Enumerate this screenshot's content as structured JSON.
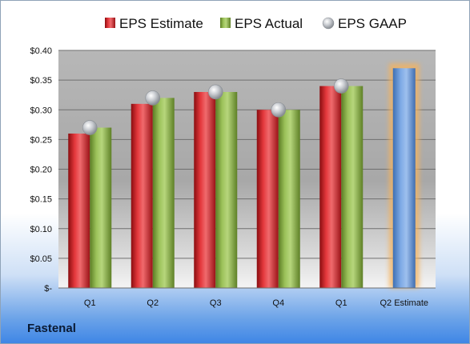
{
  "company": "Fastenal",
  "chart_data": {
    "type": "bar",
    "categories": [
      "Q1",
      "Q2",
      "Q3",
      "Q4",
      "Q1",
      "Q2 Estimate"
    ],
    "series": [
      {
        "name": "EPS Estimate",
        "type": "bar",
        "color": "#d9262b",
        "values": [
          0.26,
          0.31,
          0.33,
          0.3,
          0.34,
          null
        ]
      },
      {
        "name": "EPS Actual",
        "type": "bar",
        "color": "#8db04a",
        "values": [
          0.27,
          0.32,
          0.33,
          0.3,
          0.34,
          null
        ]
      },
      {
        "name": "EPS GAAP",
        "type": "scatter",
        "color": "#b8bcc2",
        "values": [
          0.27,
          0.32,
          0.33,
          0.3,
          0.34,
          null
        ]
      }
    ],
    "forecast": {
      "category": "Q2 Estimate",
      "value": 0.37,
      "color": "#6f9fdc",
      "highlight": "#f6b25c"
    },
    "yticks": [
      0,
      0.05,
      0.1,
      0.15,
      0.2,
      0.25,
      0.3,
      0.35,
      0.4
    ],
    "ytick_labels": [
      "$-",
      "$0.05",
      "$0.10",
      "$0.15",
      "$0.20",
      "$0.25",
      "$0.30",
      "$0.35",
      "$0.40"
    ],
    "ylim": [
      0,
      0.4
    ],
    "grid": true,
    "legend_position": "top",
    "title": "",
    "xlabel": "",
    "ylabel": ""
  }
}
